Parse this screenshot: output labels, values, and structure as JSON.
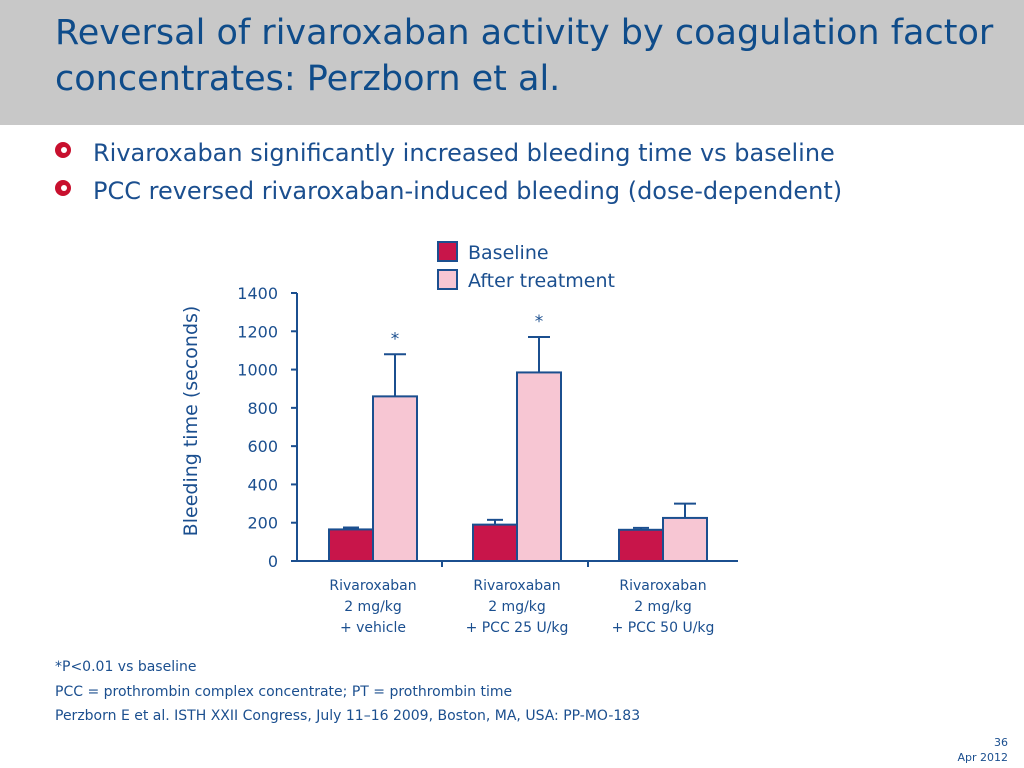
{
  "slide": {
    "title": "Reversal of rivaroxaban activity by coagulation factor concentrates: Perzborn et al.",
    "bullets": [
      "Rivaroxaban significantly increased bleeding time vs baseline",
      "PCC reversed rivaroxaban-induced bleeding (dose-dependent)"
    ],
    "footnotes": [
      "*P<0.01 vs baseline",
      "PCC = prothrombin complex concentrate; PT = prothrombin time",
      "Perzborn E et al. ISTH XXII Congress, July 11–16 2009, Boston, MA, USA: PP-MO-183"
    ],
    "page_number": "36",
    "date": "Apr 2012"
  },
  "colors": {
    "title": "#0f4c8a",
    "text": "#1b4f8f",
    "axis": "#1b4f8f",
    "baseline_fill": "#c8154a",
    "after_fill": "#f7c6d3",
    "bar_stroke": "#1b4f8f",
    "bullet": "#c8102e",
    "title_bar": "#c8c8c8"
  },
  "chart_data": {
    "type": "bar",
    "ylabel": "Bleeding time (seconds)",
    "ylim": [
      0,
      1400
    ],
    "yticks": [
      0,
      200,
      400,
      600,
      800,
      1000,
      1200,
      1400
    ],
    "categories": [
      [
        "Rivaroxaban",
        "2 mg/kg",
        "+ vehicle"
      ],
      [
        "Rivaroxaban",
        "2 mg/kg",
        "+ PCC 25 U/kg"
      ],
      [
        "Rivaroxaban",
        "2 mg/kg",
        "+ PCC 50 U/kg"
      ]
    ],
    "series": [
      {
        "name": "Baseline",
        "values": [
          165,
          190,
          163
        ],
        "errors": [
          10,
          25,
          10
        ]
      },
      {
        "name": "After treatment",
        "values": [
          860,
          985,
          225
        ],
        "errors": [
          220,
          185,
          75
        ]
      }
    ],
    "significance": [
      "*",
      "*",
      ""
    ],
    "legend_position": "top",
    "grid": false
  }
}
